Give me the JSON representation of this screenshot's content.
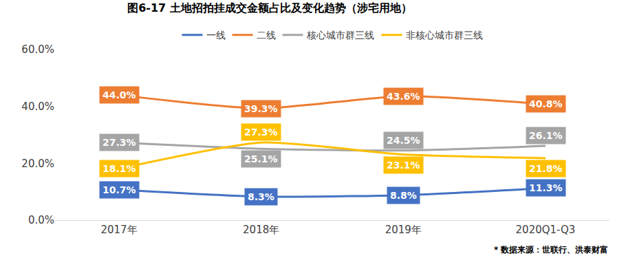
{
  "chart_data": {
    "type": "line",
    "title": "图6-17 土地招拍挂成交金额占比及变化趋势（涉宅用地）",
    "categories": [
      "2017年",
      "2018年",
      "2019年",
      "2020Q1-Q3"
    ],
    "series": [
      {
        "name": "一线",
        "color": "#4472C4",
        "values": [
          10.7,
          8.3,
          8.8,
          11.3
        ],
        "value_labels": [
          "10.7%",
          "8.3%",
          "8.8%",
          "11.3%"
        ]
      },
      {
        "name": "二线",
        "color": "#ED7D31",
        "values": [
          44.0,
          39.3,
          43.6,
          40.8
        ],
        "value_labels": [
          "44.0%",
          "39.3%",
          "43.6%",
          "40.8%"
        ]
      },
      {
        "name": "核心城市群三线",
        "color": "#A5A5A5",
        "values": [
          27.3,
          25.1,
          24.5,
          26.1
        ],
        "value_labels": [
          "27.3%",
          "25.1%",
          "24.5%",
          "26.1%"
        ]
      },
      {
        "name": "非核心城市群三线",
        "color": "#FFC000",
        "values": [
          18.1,
          27.3,
          23.1,
          21.8
        ],
        "value_labels": [
          "18.1%",
          "27.3%",
          "23.1%",
          "21.8%"
        ]
      }
    ],
    "ylim": [
      0,
      60
    ],
    "yticks": [
      {
        "value": 0,
        "label": "0.0%"
      },
      {
        "value": 20,
        "label": "20.0%"
      },
      {
        "value": 40,
        "label": "40.0%"
      },
      {
        "value": 60,
        "label": "60.0%"
      }
    ],
    "grid": false,
    "legend": "top",
    "data_labels": true,
    "annotations": [
      "* 数据来源：世联行、洪泰财富"
    ]
  }
}
